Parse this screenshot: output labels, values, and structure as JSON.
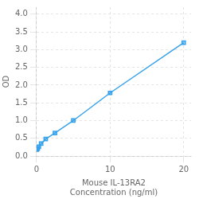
{
  "chart_data": {
    "type": "line",
    "xlabel": "Mouse IL-13RA2\nConcentration (ng/ml)",
    "ylabel": "OD",
    "x": [
      0,
      0.078,
      0.156,
      0.313,
      0.625,
      1.25,
      2.5,
      5,
      10,
      20
    ],
    "values": [
      0.182,
      0.195,
      0.21,
      0.26,
      0.35,
      0.48,
      0.65,
      1.0,
      1.78,
      3.2
    ],
    "marker": "square",
    "xlim": [
      0,
      21
    ],
    "xticks": [
      0,
      10,
      20
    ],
    "ylim": [
      0,
      4.2
    ],
    "yticks": [
      {
        "value": 0,
        "label": "0.0"
      },
      0.5,
      {
        "value": 1.0,
        "label": "1.0"
      },
      1.5,
      {
        "value": 2.0,
        "label": "2.0"
      },
      2.5,
      {
        "value": 3.0,
        "label": "3.0"
      },
      3.5,
      {
        "value": 4.0,
        "label": "4.0"
      }
    ],
    "grid": true
  }
}
